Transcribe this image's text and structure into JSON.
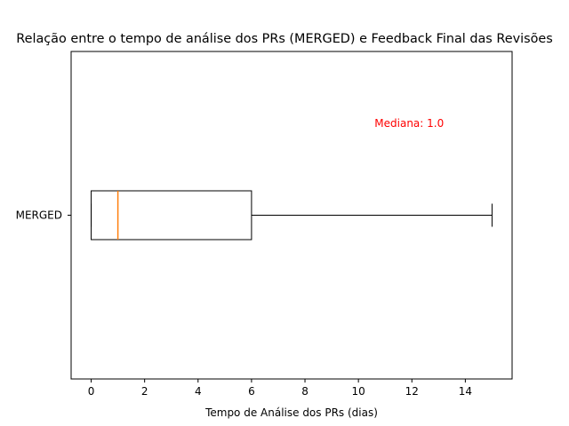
{
  "chart_data": {
    "type": "boxplot",
    "orientation": "horizontal",
    "title": "Relação entre o tempo de análise dos PRs (MERGED) e Feedback Final das Revisões",
    "xlabel": "Tempo de Análise dos PRs (dias)",
    "ylabel": "",
    "xlim": [
      -0.75,
      15.75
    ],
    "xticks": [
      0,
      2,
      4,
      6,
      8,
      10,
      12,
      14
    ],
    "categories": [
      "MERGED"
    ],
    "boxes": [
      {
        "category": "MERGED",
        "whisker_low": 0,
        "q1": 0,
        "median": 1,
        "q3": 6,
        "whisker_high": 15
      }
    ],
    "annotation": {
      "text": "Mediana: 1.0",
      "x": 11.9,
      "y_rel": 0.78,
      "color": "#ff0000"
    },
    "colors": {
      "box": "#000000",
      "median": "#ff7f0e"
    },
    "grid": false
  }
}
